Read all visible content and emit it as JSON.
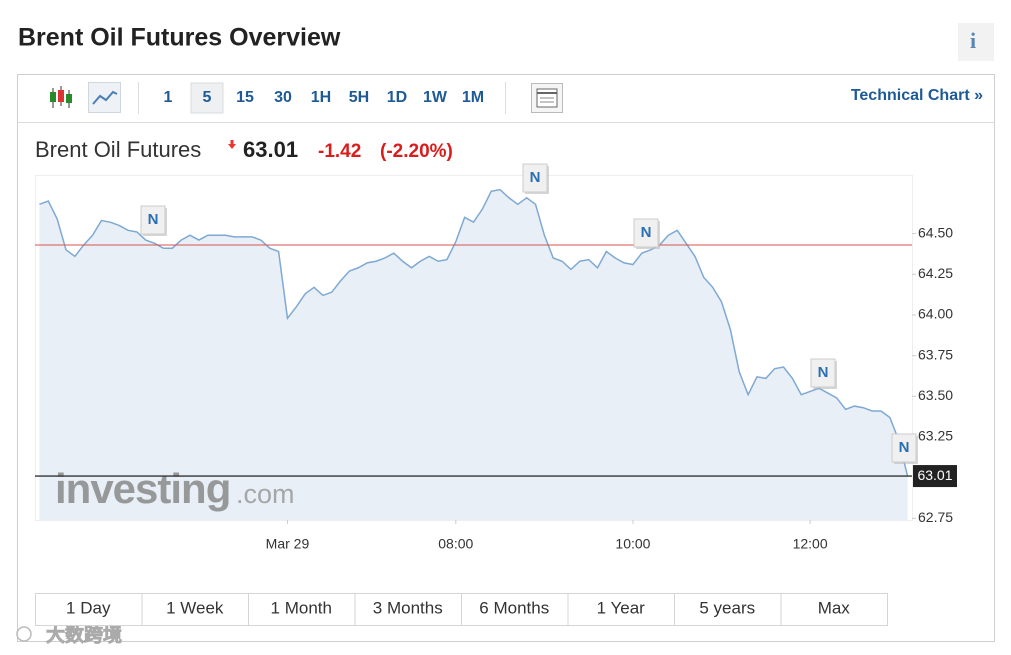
{
  "header": {
    "title": "Brent Oil Futures Overview",
    "info": "i"
  },
  "toolbar": {
    "periods": [
      "1",
      "5",
      "15",
      "30",
      "1H",
      "5H",
      "1D",
      "1W",
      "1M"
    ],
    "technical_chart": "Technical Chart »"
  },
  "quote": {
    "name": "Brent Oil Futures",
    "price": "63.01",
    "change": "-1.42",
    "change_percent": "(-2.20%)"
  },
  "news_markers": [
    "N",
    "N",
    "N",
    "N",
    "N"
  ],
  "watermark": {
    "brand": "investing",
    "suffix": ".com"
  },
  "ranges": [
    "1 Day",
    "1 Week",
    "1 Month",
    "3 Months",
    "6 Months",
    "1 Year",
    "5 years",
    "Max"
  ],
  "corner_watermark": "大数跨境",
  "chart_data": {
    "type": "area",
    "categories": [
      null,
      null,
      null,
      null,
      null,
      null,
      null,
      null,
      null,
      null,
      null,
      null,
      null,
      null,
      null,
      null,
      null,
      null,
      null,
      null,
      null,
      null,
      null,
      null,
      null,
      null,
      null,
      null,
      "Mar 29",
      null,
      null,
      null,
      null,
      null,
      null,
      null,
      null,
      null,
      null,
      null,
      null,
      null,
      null,
      null,
      null,
      null,
      null,
      "08:00",
      null,
      null,
      null,
      null,
      null,
      null,
      null,
      null,
      null,
      null,
      null,
      null,
      null,
      null,
      null,
      null,
      null,
      null,
      null,
      "10:00",
      null,
      null,
      null,
      null,
      null,
      null,
      null,
      null,
      null,
      null,
      null,
      null,
      null,
      null,
      null,
      null,
      null,
      null,
      null,
      "12:00",
      null,
      null,
      null,
      null,
      null,
      null,
      null,
      null,
      null,
      null,
      null
    ],
    "series": [
      {
        "name": "Brent Oil Futures",
        "color": "#7ea9d3",
        "fill": "#e8eff6",
        "values": [
          64.68,
          64.7,
          64.59,
          64.4,
          64.36,
          64.43,
          64.49,
          64.58,
          64.57,
          64.55,
          64.52,
          64.51,
          64.46,
          64.44,
          64.41,
          64.41,
          64.46,
          64.49,
          64.46,
          64.49,
          64.49,
          64.49,
          64.48,
          64.48,
          64.48,
          64.46,
          64.41,
          64.39,
          63.98,
          64.05,
          64.13,
          64.17,
          64.12,
          64.14,
          64.21,
          64.27,
          64.29,
          64.32,
          64.33,
          64.35,
          64.38,
          64.33,
          64.29,
          64.33,
          64.36,
          64.33,
          64.34,
          64.45,
          64.6,
          64.57,
          64.65,
          64.76,
          64.77,
          64.72,
          64.68,
          64.72,
          64.68,
          64.49,
          64.35,
          64.33,
          64.28,
          64.33,
          64.34,
          64.29,
          64.39,
          64.35,
          64.32,
          64.31,
          64.38,
          64.4,
          64.43,
          64.49,
          64.52,
          64.44,
          64.36,
          64.23,
          64.17,
          64.08,
          63.91,
          63.65,
          63.51,
          63.62,
          63.61,
          63.67,
          63.68,
          63.61,
          63.51,
          63.53,
          63.55,
          63.52,
          63.49,
          63.42,
          63.44,
          63.43,
          63.41,
          63.41,
          63.37,
          63.23,
          63.01
        ]
      }
    ],
    "ylim": [
      62.74,
      64.86
    ],
    "yticks": [
      62.75,
      63.25,
      {
        "value": 63.5,
        "label": "63.50"
      },
      63.75,
      {
        "value": 64,
        "label": "64.00"
      },
      64.25,
      {
        "value": 64.5,
        "label": "64.50"
      }
    ],
    "reference_line": {
      "value": 64.43,
      "color": "#d9534f"
    },
    "last_value": 63.01
  }
}
